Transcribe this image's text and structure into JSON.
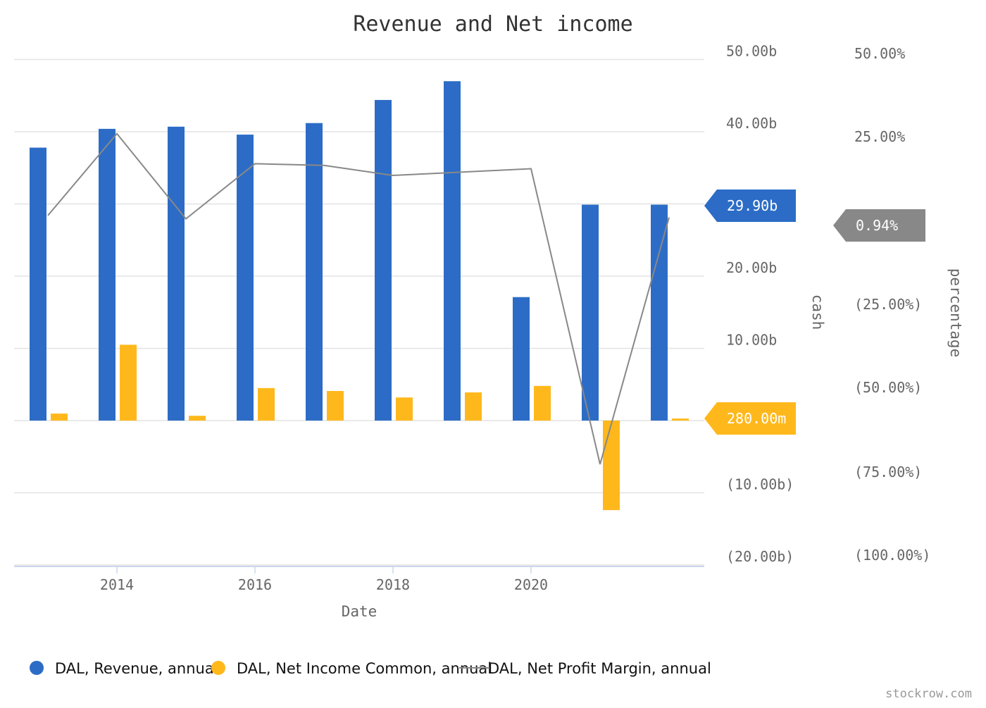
{
  "chart_data": {
    "type": "bar",
    "title": "Revenue and Net income",
    "xlabel": "Date",
    "ylabel_left": "cash",
    "ylabel_right": "percentage",
    "x_ticks": [
      "2014",
      "2016",
      "2018",
      "2020"
    ],
    "x_range": [
      2012.8,
      2022.8
    ],
    "x": [
      2013,
      2014,
      2015,
      2016,
      2017,
      2018,
      2019,
      2020,
      2021,
      2022
    ],
    "y_left_ticks": [
      {
        "value": 50,
        "label": "50.00b"
      },
      {
        "value": 40,
        "label": "40.00b"
      },
      {
        "value": 30,
        "label": ""
      },
      {
        "value": 20,
        "label": "20.00b"
      },
      {
        "value": 10,
        "label": "10.00b"
      },
      {
        "value": 0,
        "label": ""
      },
      {
        "value": -10,
        "label": "(10.00b)"
      },
      {
        "value": -20,
        "label": "(20.00b)"
      }
    ],
    "y_left_range": [
      -20,
      50
    ],
    "y_right_ticks": [
      {
        "value": 50,
        "label": "50.00%"
      },
      {
        "value": 25,
        "label": "25.00%"
      },
      {
        "value": -25,
        "label": "(25.00%)"
      },
      {
        "value": -50,
        "label": "(50.00%)"
      },
      {
        "value": -75,
        "label": "(75.00%)"
      },
      {
        "value": -100,
        "label": "(100.00%)"
      }
    ],
    "grid": true,
    "legend_position": "bottom-left",
    "series": [
      {
        "name": "DAL, Revenue, annual",
        "type": "bar",
        "axis": "left",
        "color": "#2c6cc6",
        "values": [
          37.8,
          40.4,
          40.7,
          39.6,
          41.2,
          44.4,
          47.0,
          17.1,
          29.9,
          29.9
        ],
        "badge": "29.90b"
      },
      {
        "name": "DAL, Net Income Common, annual",
        "type": "bar",
        "axis": "left",
        "color": "#ffb81c",
        "values": [
          0.97,
          10.5,
          0.66,
          4.5,
          4.1,
          3.2,
          3.9,
          4.8,
          -12.4,
          0.28
        ],
        "badge": "280.00m"
      },
      {
        "name": "DAL, Net Profit Margin, annual",
        "type": "line",
        "axis": "right",
        "color": "#888888",
        "values": [
          1.5,
          26.0,
          0.5,
          17.0,
          16.5,
          13.5,
          14.5,
          15.5,
          -73.0,
          0.94
        ],
        "badge": "0.94%"
      }
    ],
    "watermark": "stockrow.com"
  }
}
